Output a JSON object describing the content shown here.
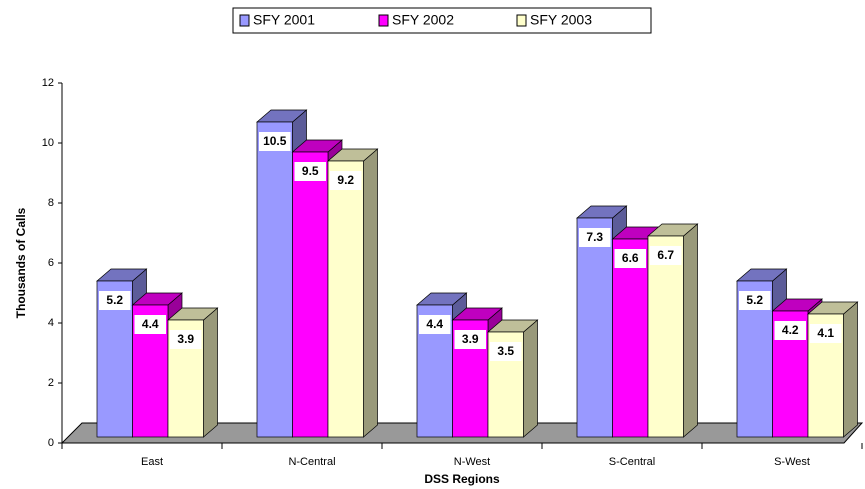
{
  "chart_data": {
    "type": "bar3d",
    "x_label": "DSS Regions",
    "y_label": "Thousands of Calls",
    "categories": [
      "East",
      "N-Central",
      "N-West",
      "S-Central",
      "S-West"
    ],
    "series": [
      {
        "name": "SFY 2001",
        "color": "#9999ff",
        "values": [
          5.2,
          10.5,
          4.4,
          7.3,
          5.2
        ]
      },
      {
        "name": "SFY 2002",
        "color": "#ff00ff",
        "values": [
          4.4,
          9.5,
          3.9,
          6.6,
          4.2
        ]
      },
      {
        "name": "SFY 2003",
        "color": "#ffffcc",
        "values": [
          3.9,
          9.2,
          3.5,
          6.7,
          4.1
        ]
      }
    ],
    "ylim": [
      0,
      12
    ],
    "yticks": [
      0,
      2,
      4,
      6,
      8,
      10,
      12
    ],
    "legend": "top"
  }
}
